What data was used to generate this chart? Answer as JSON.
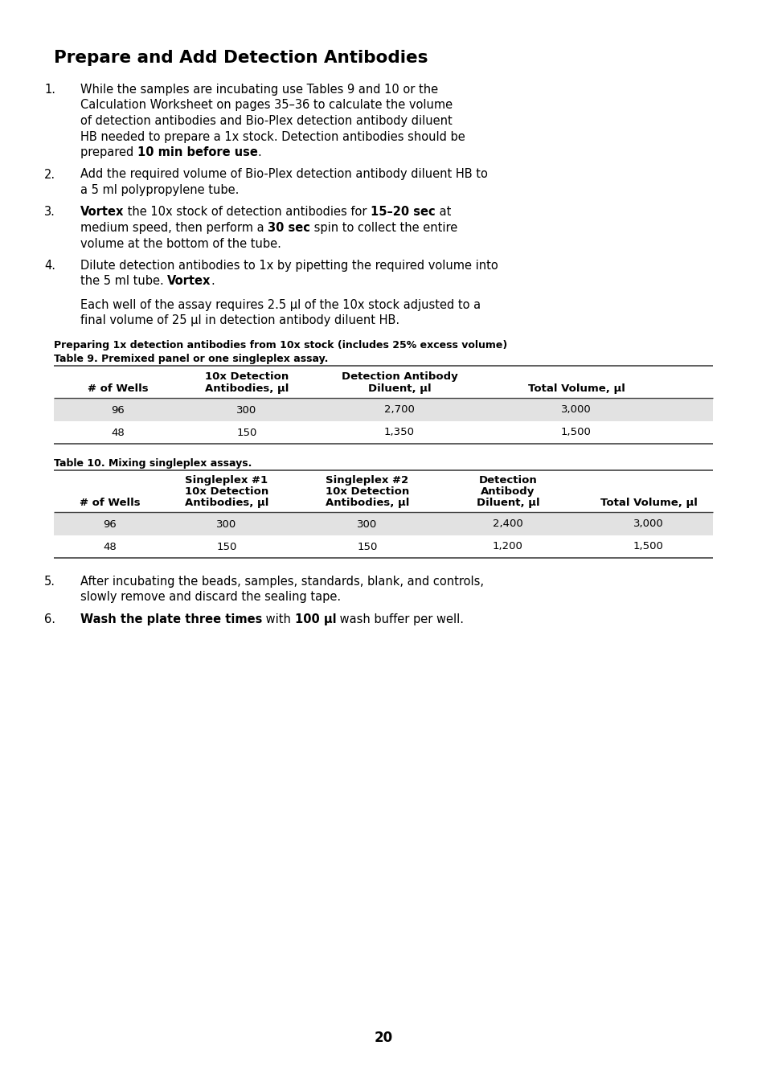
{
  "bg_color": "#ffffff",
  "title": "Prepare and Add Detection Antibodies",
  "page_number": "20",
  "prep_label": "Preparing 1x detection antibodies from 10x stock (includes 25% excess volume)",
  "table9_title": "Table 9. Premixed panel or one singleplex assay.",
  "table9_headers_line1": [
    "",
    "10x Detection",
    "Detection Antibody",
    ""
  ],
  "table9_headers_line2": [
    "# of Wells",
    "Antibodies, µl",
    "Diluent, µl",
    "Total Volume, µl"
  ],
  "table9_data": [
    [
      "96",
      "300",
      "2,700",
      "3,000"
    ],
    [
      "48",
      "150",
      "1,350",
      "1,500"
    ]
  ],
  "table9_row_colors": [
    "#e2e2e2",
    "#ffffff"
  ],
  "table10_title": "Table 10. Mixing singleplex assays.",
  "table10_headers_line1": [
    "",
    "Singleplex #1",
    "Singleplex #2",
    "Detection",
    ""
  ],
  "table10_headers_line2": [
    "",
    "10x Detection",
    "10x Detection",
    "Antibody",
    ""
  ],
  "table10_headers_line3": [
    "# of Wells",
    "Antibodies, µl",
    "Antibodies, µl",
    "Diluent, µl",
    "Total Volume, µl"
  ],
  "table10_data": [
    [
      "96",
      "300",
      "300",
      "2,400",
      "3,000"
    ],
    [
      "48",
      "150",
      "150",
      "1,200",
      "1,500"
    ]
  ],
  "table10_row_colors": [
    "#e2e2e2",
    "#ffffff"
  ],
  "row_shade": "#e2e2e2"
}
